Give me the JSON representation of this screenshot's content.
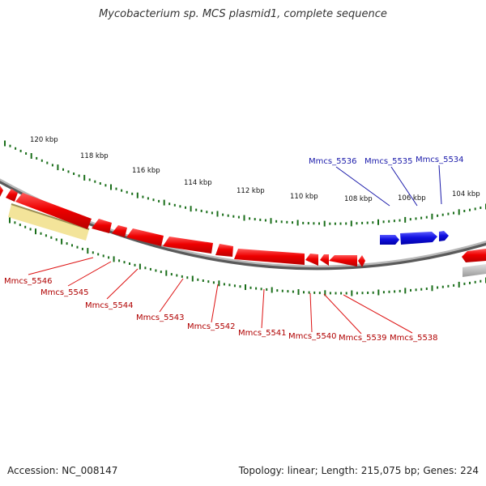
{
  "title": "Mycobacterium sp. MCS plasmid1, complete sequence",
  "footer": {
    "accession": "Accession: NC_008147",
    "summary": "Topology: linear; Length: 215,075 bp; Genes: 224"
  },
  "colors": {
    "forward_gene": "#1010e0",
    "reverse_gene": "#ee0000",
    "backbone": "#8a8a8a",
    "tick": "#1a6e1a",
    "highlight": "#f3e49a",
    "forward_label": "#1a1aaa",
    "reverse_label": "#b00000"
  },
  "kbp_ticks": [
    "120 kbp",
    "118 kbp",
    "116 kbp",
    "114 kbp",
    "112 kbp",
    "110 kbp",
    "108 kbp",
    "106 kbp",
    "104 kbp"
  ],
  "forward_labels": [
    "Mmcs_5536",
    "Mmcs_5535",
    "Mmcs_5534"
  ],
  "reverse_labels": [
    "Mmcs_5546",
    "Mmcs_5545",
    "Mmcs_5544",
    "Mmcs_5543",
    "Mmcs_5542",
    "Mmcs_5541",
    "Mmcs_5540",
    "Mmcs_5539",
    "Mmcs_5538"
  ]
}
